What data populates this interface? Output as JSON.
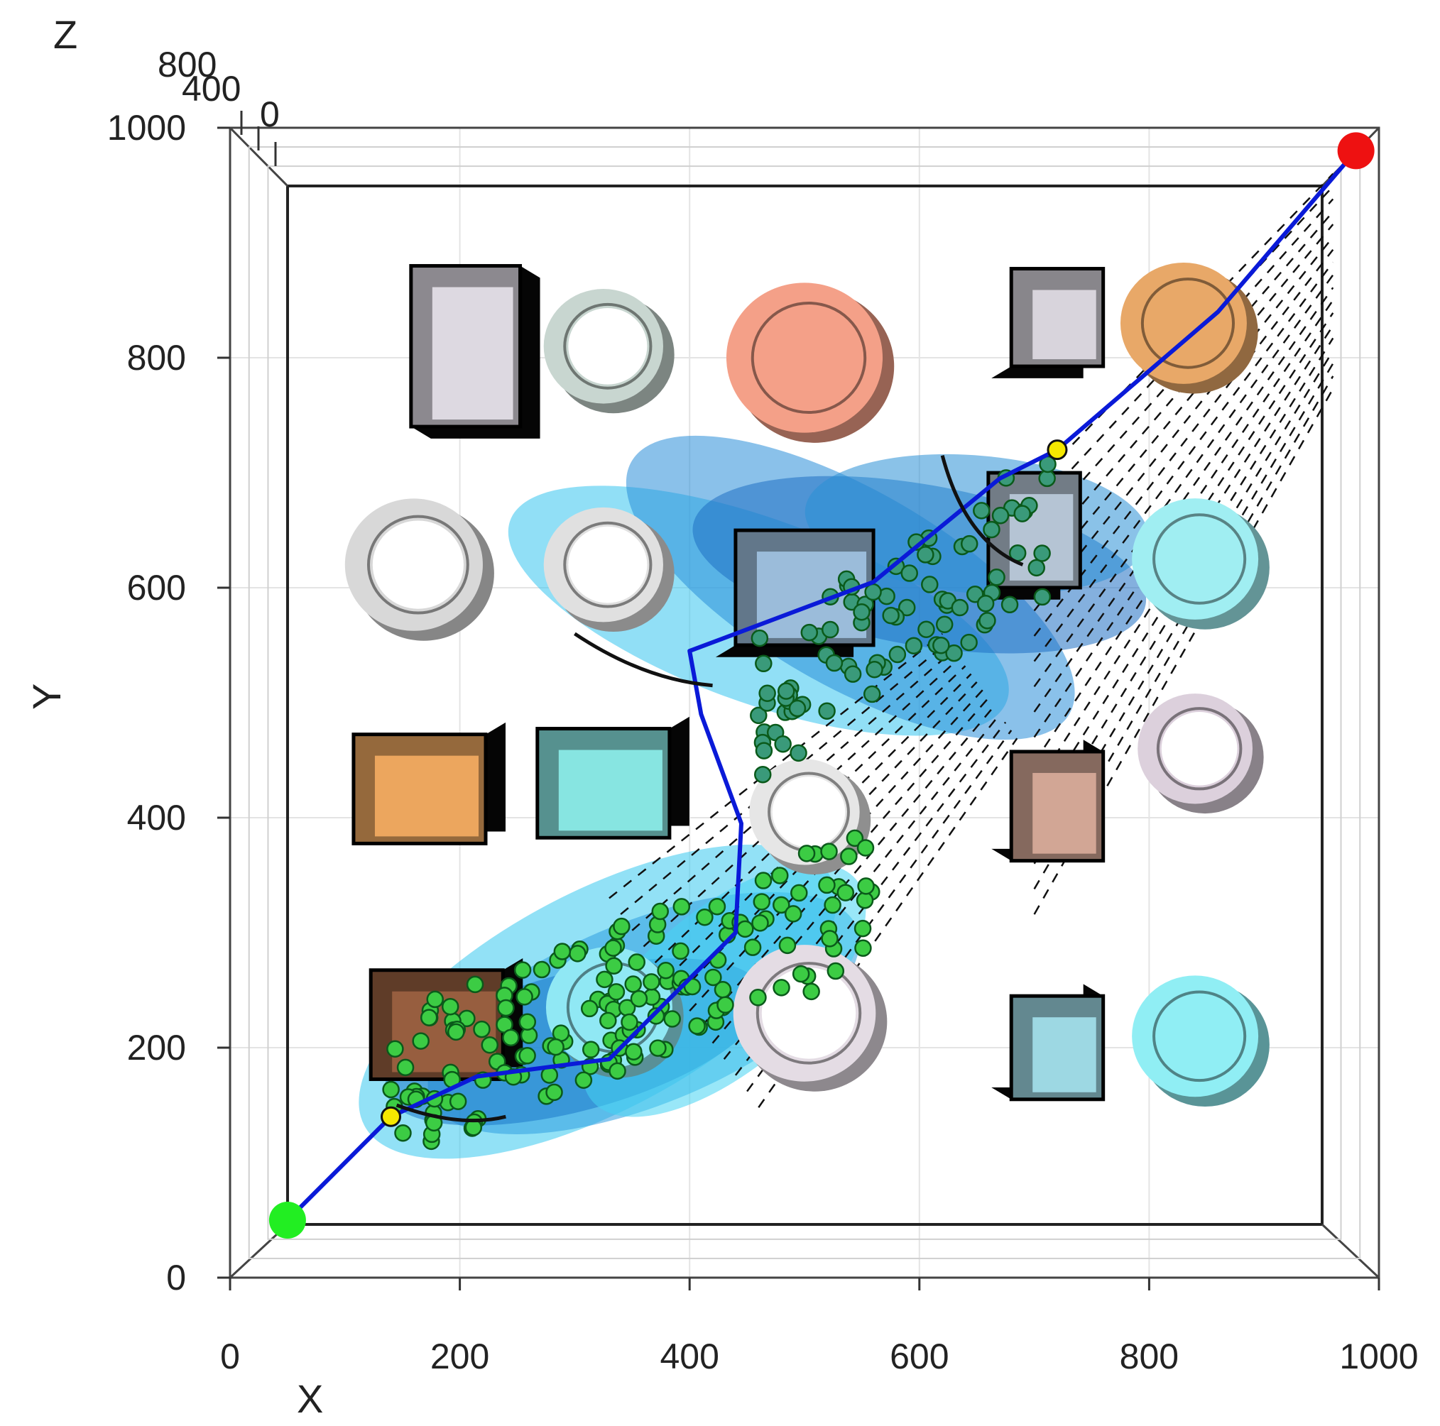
{
  "chart_data": {
    "type": "scatter",
    "projection": "3d-top-view",
    "xlabel": "X",
    "ylabel": "Y",
    "zlabel": "Z",
    "x_ticks": [
      0,
      200,
      400,
      600,
      800,
      1000
    ],
    "y_ticks": [
      0,
      200,
      400,
      600,
      800,
      1000
    ],
    "z_tick_labels": [
      "800",
      "400",
      "0"
    ],
    "xlim": [
      0,
      1000
    ],
    "ylim": [
      0,
      1000
    ],
    "zlim": [
      0,
      1000
    ],
    "grid": true,
    "start": {
      "x": 50,
      "y": 50,
      "color": "#22ee22"
    },
    "goal": {
      "x": 980,
      "y": 980,
      "color": "#ee1111"
    },
    "waypoints": [
      {
        "x": 140,
        "y": 140
      },
      {
        "x": 720,
        "y": 720
      }
    ],
    "path": [
      {
        "x": 50,
        "y": 50
      },
      {
        "x": 140,
        "y": 140
      },
      {
        "x": 215,
        "y": 175
      },
      {
        "x": 330,
        "y": 190
      },
      {
        "x": 440,
        "y": 300
      },
      {
        "x": 445,
        "y": 395
      },
      {
        "x": 410,
        "y": 490
      },
      {
        "x": 400,
        "y": 545
      },
      {
        "x": 560,
        "y": 605
      },
      {
        "x": 670,
        "y": 695
      },
      {
        "x": 720,
        "y": 720
      },
      {
        "x": 860,
        "y": 840
      },
      {
        "x": 980,
        "y": 980
      }
    ],
    "obstacles": [
      {
        "shape": "box",
        "cx": 205,
        "cy": 810,
        "w": 95,
        "h": 140,
        "color": "#e2dde6"
      },
      {
        "shape": "cylinder",
        "cx": 325,
        "cy": 810,
        "r": 52,
        "color": "#c8d6d0"
      },
      {
        "shape": "cylinder",
        "cx": 500,
        "cy": 800,
        "r": 68,
        "color": "#f4a088"
      },
      {
        "shape": "box",
        "cx": 720,
        "cy": 835,
        "w": 80,
        "h": 85,
        "color": "#dcd8e0"
      },
      {
        "shape": "cylinder",
        "cx": 830,
        "cy": 830,
        "r": 55,
        "color": "#e8a868"
      },
      {
        "shape": "cylinder",
        "cx": 160,
        "cy": 620,
        "r": 60,
        "color": "#d8d8d8"
      },
      {
        "shape": "cylinder",
        "cx": 325,
        "cy": 620,
        "r": 52,
        "color": "#e0e0e0"
      },
      {
        "shape": "box",
        "cx": 500,
        "cy": 600,
        "w": 120,
        "h": 100,
        "color": "#9ec0de"
      },
      {
        "shape": "box",
        "cx": 700,
        "cy": 650,
        "w": 80,
        "h": 100,
        "color": "#b8c8d8"
      },
      {
        "shape": "cylinder",
        "cx": 840,
        "cy": 625,
        "r": 55,
        "color": "#a0eef2"
      },
      {
        "shape": "box",
        "cx": 165,
        "cy": 425,
        "w": 115,
        "h": 95,
        "color": "#f0aa60"
      },
      {
        "shape": "box",
        "cx": 325,
        "cy": 430,
        "w": 115,
        "h": 95,
        "color": "#8aeae6"
      },
      {
        "shape": "cylinder",
        "cx": 500,
        "cy": 405,
        "r": 48,
        "color": "#e6e6e6"
      },
      {
        "shape": "box",
        "cx": 720,
        "cy": 410,
        "w": 80,
        "h": 95,
        "color": "#d6aa98"
      },
      {
        "shape": "cylinder",
        "cx": 840,
        "cy": 460,
        "r": 50,
        "color": "#dcd0dc"
      },
      {
        "shape": "box",
        "cx": 180,
        "cy": 220,
        "w": 115,
        "h": 95,
        "color": "#9a6040"
      },
      {
        "shape": "cylinder",
        "cx": 330,
        "cy": 235,
        "r": 55,
        "color": "#90e8f4"
      },
      {
        "shape": "cylinder",
        "cx": 500,
        "cy": 230,
        "r": 62,
        "color": "#e4dce4"
      },
      {
        "shape": "box",
        "cx": 720,
        "cy": 200,
        "w": 80,
        "h": 90,
        "color": "#a0dce8"
      },
      {
        "shape": "cylinder",
        "cx": 840,
        "cy": 210,
        "r": 55,
        "color": "#90eef4"
      }
    ],
    "samples_region_low": {
      "x_range": [
        140,
        570
      ],
      "y_range": [
        140,
        350
      ],
      "color": "#3ccc44"
    },
    "samples_region_high": {
      "x_range": [
        460,
        720
      ],
      "y_range": [
        470,
        680
      ],
      "color": "#3a9a7a"
    }
  }
}
